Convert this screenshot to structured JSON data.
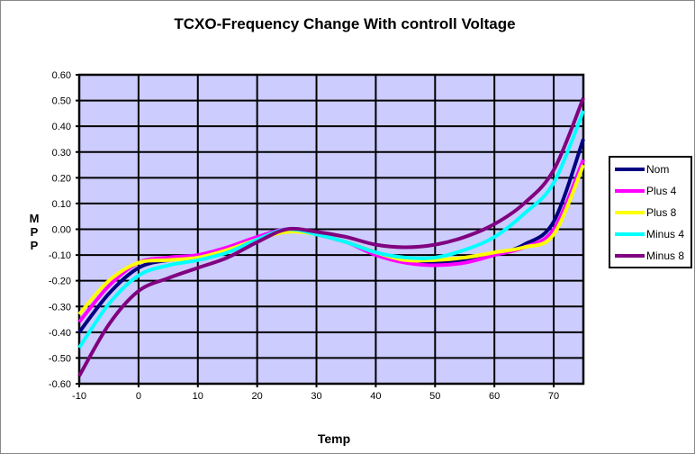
{
  "chart_data": {
    "type": "line",
    "title": "TCXO-Frequency Change With controll Voltage",
    "xlabel": "Temp",
    "ylabel": "MPP",
    "xlim": [
      -10,
      75
    ],
    "ylim": [
      -0.6,
      0.6
    ],
    "xticks": [
      -10,
      0,
      10,
      20,
      30,
      40,
      50,
      60,
      70
    ],
    "yticks": [
      "0.60",
      "0.50",
      "0.40",
      "0.30",
      "0.20",
      "0.10",
      "0.00",
      "-0.10",
      "-0.20",
      "-0.30",
      "-0.40",
      "-0.50",
      "-0.60"
    ],
    "grid": true,
    "plot_background": "#ccccff",
    "legend_position": "right",
    "x": [
      -10,
      -5,
      0,
      5,
      10,
      15,
      20,
      25,
      30,
      35,
      40,
      45,
      50,
      55,
      60,
      65,
      70,
      75
    ],
    "series": [
      {
        "name": "Nom",
        "color": "#000080",
        "values": [
          -0.4,
          -0.25,
          -0.15,
          -0.12,
          -0.11,
          -0.08,
          -0.04,
          0.0,
          -0.02,
          -0.05,
          -0.09,
          -0.12,
          -0.13,
          -0.12,
          -0.1,
          -0.06,
          0.03,
          0.35
        ]
      },
      {
        "name": "Plus 4",
        "color": "#ff00ff",
        "values": [
          -0.36,
          -0.22,
          -0.13,
          -0.11,
          -0.1,
          -0.07,
          -0.03,
          0.0,
          -0.02,
          -0.05,
          -0.1,
          -0.13,
          -0.14,
          -0.13,
          -0.1,
          -0.07,
          0.0,
          0.27
        ]
      },
      {
        "name": "Plus 8",
        "color": "#ffff00",
        "values": [
          -0.33,
          -0.2,
          -0.13,
          -0.12,
          -0.11,
          -0.08,
          -0.04,
          -0.01,
          -0.02,
          -0.05,
          -0.09,
          -0.12,
          -0.12,
          -0.11,
          -0.09,
          -0.07,
          -0.02,
          0.25
        ]
      },
      {
        "name": "Minus 4",
        "color": "#00ffff",
        "values": [
          -0.46,
          -0.29,
          -0.18,
          -0.14,
          -0.12,
          -0.09,
          -0.04,
          0.0,
          -0.02,
          -0.05,
          -0.09,
          -0.11,
          -0.11,
          -0.08,
          -0.03,
          0.06,
          0.18,
          0.46
        ]
      },
      {
        "name": "Minus 8",
        "color": "#800080",
        "values": [
          -0.57,
          -0.37,
          -0.24,
          -0.19,
          -0.15,
          -0.11,
          -0.05,
          0.0,
          -0.01,
          -0.03,
          -0.06,
          -0.07,
          -0.06,
          -0.03,
          0.02,
          0.1,
          0.23,
          0.51
        ]
      }
    ]
  }
}
